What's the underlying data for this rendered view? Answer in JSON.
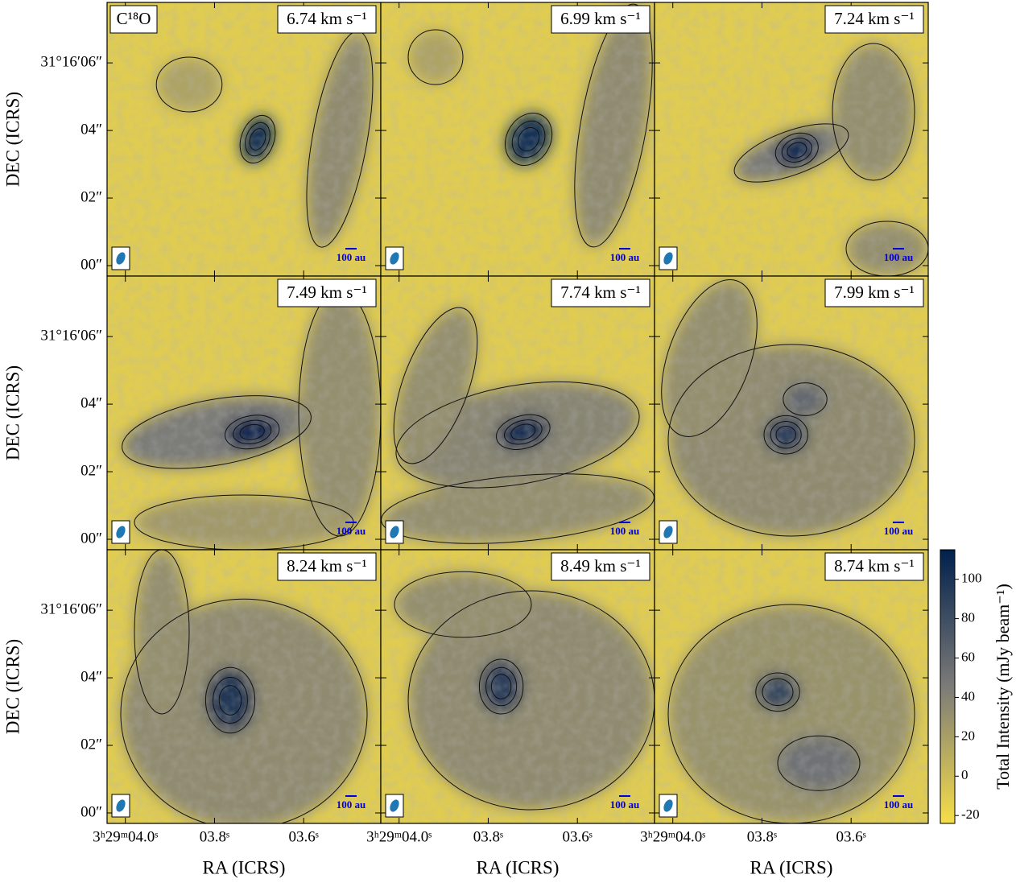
{
  "chart_data": {
    "type": "channel-map",
    "molecule": "C¹⁸O",
    "panels": [
      "6.74 km s⁻¹",
      "6.99 km s⁻¹",
      "7.24 km s⁻¹",
      "7.49 km s⁻¹",
      "7.74 km s⁻¹",
      "7.99 km s⁻¹",
      "8.24 km s⁻¹",
      "8.49 km s⁻¹",
      "8.74 km s⁻¹"
    ],
    "xlabel": "RA (ICRS)",
    "ylabel": "DEC (ICRS)",
    "xlim": [
      4.041,
      3.427
    ],
    "xticks": [
      {
        "value": 4.0,
        "label": "3ʰ29ᵐ04.0ˢ"
      },
      {
        "value": 3.8,
        "label": "03.8ˢ"
      },
      {
        "value": 3.6,
        "label": "03.6ˢ"
      }
    ],
    "ylim": [
      -0.31,
      7.79
    ],
    "yticks": [
      {
        "value": 0,
        "label": "00″"
      },
      {
        "value": 2,
        "label": "02″"
      },
      {
        "value": 4,
        "label": "04″"
      },
      {
        "value": 6,
        "label": "31°16′06″"
      }
    ],
    "scale_bar": "100 au",
    "colorbar": {
      "label": "Total Intensity (mJy beam⁻¹)",
      "clim": [
        -24,
        115
      ],
      "ticks": [
        -20,
        0,
        20,
        40,
        60,
        80,
        100
      ],
      "colors": [
        "#f6de48",
        "#7c7b78",
        "#00204c"
      ]
    }
  }
}
